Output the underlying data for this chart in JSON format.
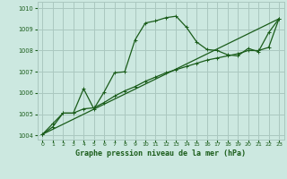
{
  "xlabel": "Graphe pression niveau de la mer (hPa)",
  "bg_color": "#cce8e0",
  "grid_color": "#aac8c0",
  "line_color": "#1a5c1a",
  "ylim": [
    1003.8,
    1010.3
  ],
  "xlim": [
    -0.5,
    23.5
  ],
  "yticks": [
    1004,
    1005,
    1006,
    1007,
    1008,
    1009,
    1010
  ],
  "xticks": [
    0,
    1,
    2,
    3,
    4,
    5,
    6,
    7,
    8,
    9,
    10,
    11,
    12,
    13,
    14,
    15,
    16,
    17,
    18,
    19,
    20,
    21,
    22,
    23
  ],
  "line1_x": [
    0,
    1,
    2,
    3,
    4,
    5,
    6,
    7,
    8,
    9,
    10,
    11,
    12,
    13,
    14,
    15,
    16,
    17,
    18,
    19,
    20,
    21,
    22,
    23
  ],
  "line1_y": [
    1004.05,
    1004.55,
    1005.05,
    1005.05,
    1006.2,
    1005.25,
    1006.05,
    1006.95,
    1007.0,
    1008.5,
    1009.3,
    1009.4,
    1009.55,
    1009.62,
    1009.1,
    1008.4,
    1008.05,
    1008.0,
    1007.8,
    1007.75,
    1008.1,
    1007.95,
    1008.85,
    1009.5
  ],
  "line2_x": [
    0,
    1,
    2,
    3,
    4,
    5,
    6,
    7,
    8,
    9,
    10,
    11,
    12,
    13,
    14,
    15,
    16,
    17,
    18,
    19,
    20,
    21,
    22,
    23
  ],
  "line2_y": [
    1004.05,
    1004.4,
    1005.05,
    1005.05,
    1005.25,
    1005.3,
    1005.55,
    1005.85,
    1006.1,
    1006.3,
    1006.55,
    1006.75,
    1006.95,
    1007.1,
    1007.25,
    1007.4,
    1007.55,
    1007.65,
    1007.75,
    1007.85,
    1008.0,
    1008.0,
    1008.15,
    1009.5
  ],
  "line3_x": [
    0,
    23
  ],
  "line3_y": [
    1004.05,
    1009.5
  ]
}
